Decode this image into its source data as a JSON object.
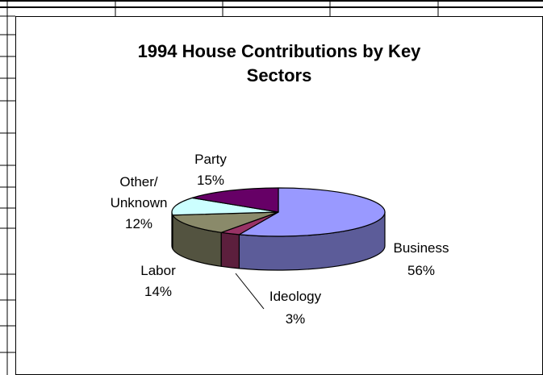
{
  "chart_data": {
    "type": "pie",
    "title_lines": [
      "1994 House Contributions by Key",
      "Sectors"
    ],
    "title": "1994 House Contributions by Key Sectors",
    "style": "3d",
    "categories": [
      "Business",
      "Ideology",
      "Labor",
      "Other/ Unknown",
      "Party"
    ],
    "values": [
      56,
      3,
      14,
      12,
      15
    ],
    "slices": [
      {
        "name": "Business",
        "label_lines": [
          "Business",
          "56%"
        ],
        "value": 56,
        "color": "#9999ff"
      },
      {
        "name": "Ideology",
        "label_lines": [
          "Ideology",
          "3%"
        ],
        "value": 3,
        "color": "#993366"
      },
      {
        "name": "Labor",
        "label_lines": [
          "Labor",
          "14%"
        ],
        "value": 14,
        "color": "#8a8a6a"
      },
      {
        "name": "Other/ Unknown",
        "label_lines": [
          "Other/",
          "Unknown",
          "12%"
        ],
        "value": 12,
        "color": "#ccffff"
      },
      {
        "name": "Party",
        "label_lines": [
          "Party",
          "15%"
        ],
        "value": 15,
        "color": "#660066"
      }
    ],
    "legend": "none",
    "grid": false
  }
}
